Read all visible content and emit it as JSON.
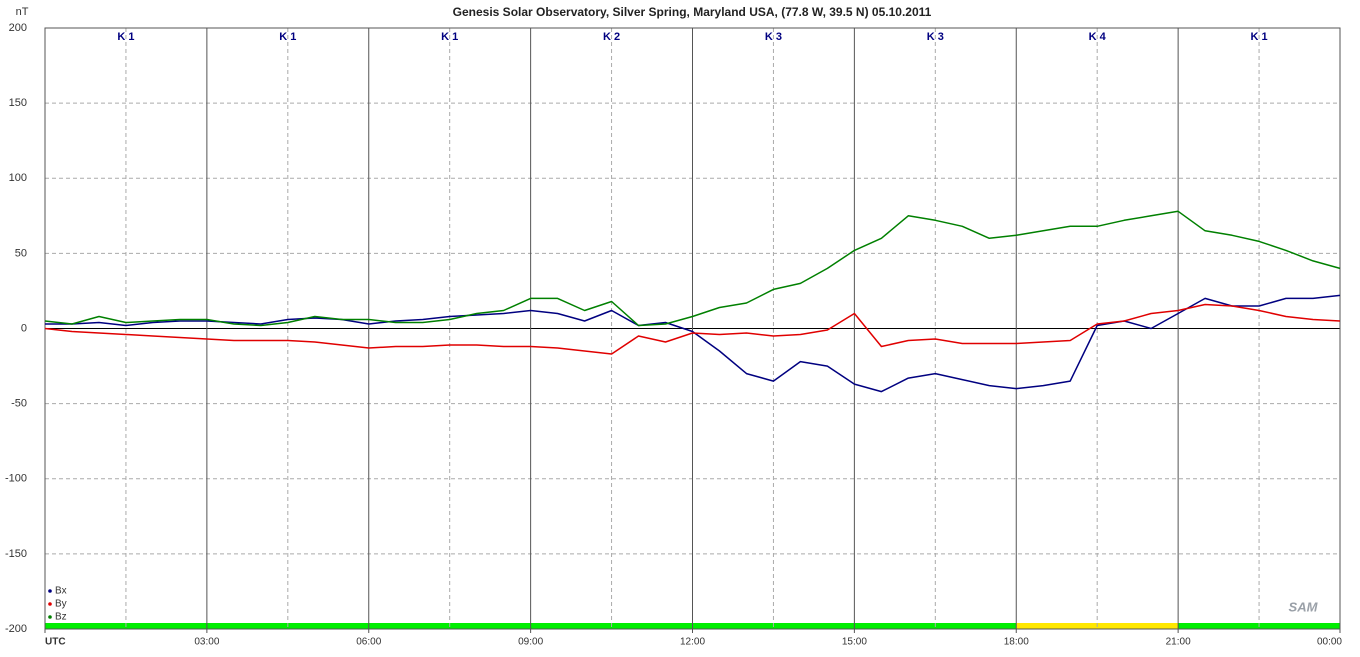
{
  "chart_data": {
    "type": "line",
    "title": "Genesis Solar Observatory, Silver Spring, Maryland USA, (77.8 W, 39.5 N)  05.10.2011",
    "y_label": "nT",
    "logo": "SAM",
    "x": [
      0,
      0.5,
      1,
      1.5,
      2,
      2.5,
      3,
      3.5,
      4,
      4.5,
      5,
      5.5,
      6,
      6.5,
      7,
      7.5,
      8,
      8.5,
      9,
      9.5,
      10,
      10.5,
      11,
      11.5,
      12,
      12.5,
      13,
      13.5,
      14,
      14.5,
      15,
      15.5,
      16,
      16.5,
      17,
      17.5,
      18,
      18.5,
      19,
      19.5,
      20,
      20.5,
      21,
      21.5,
      22,
      22.5,
      23,
      23.5,
      24
    ],
    "series": [
      {
        "name": "Bx",
        "color": "#000080",
        "values": [
          3,
          3,
          4,
          2,
          4,
          5,
          5,
          4,
          3,
          6,
          7,
          6,
          3,
          5,
          6,
          8,
          9,
          10,
          12,
          10,
          5,
          12,
          2,
          4,
          -2,
          -15,
          -30,
          -35,
          -22,
          -25,
          -37,
          -42,
          -33,
          -30,
          -34,
          -38,
          -40,
          -38,
          -35,
          2,
          5,
          0,
          10,
          20,
          15,
          15,
          20,
          20,
          22
        ]
      },
      {
        "name": "By",
        "color": "#e00000",
        "values": [
          0,
          -2,
          -3,
          -4,
          -5,
          -6,
          -7,
          -8,
          -8,
          -8,
          -9,
          -11,
          -13,
          -12,
          -12,
          -11,
          -11,
          -12,
          -12,
          -13,
          -15,
          -17,
          -5,
          -9,
          -3,
          -4,
          -3,
          -5,
          -4,
          -1,
          10,
          -12,
          -8,
          -7,
          -10,
          -10,
          -10,
          -9,
          -8,
          3,
          5,
          10,
          12,
          16,
          15,
          12,
          8,
          6,
          5
        ]
      },
      {
        "name": "Bz",
        "color": "#008000",
        "values": [
          5,
          3,
          8,
          4,
          5,
          6,
          6,
          3,
          2,
          4,
          8,
          6,
          6,
          4,
          4,
          6,
          10,
          12,
          20,
          20,
          12,
          18,
          2,
          3,
          8,
          14,
          17,
          26,
          30,
          40,
          52,
          60,
          75,
          72,
          68,
          60,
          62,
          65,
          68,
          68,
          72,
          75,
          78,
          65,
          62,
          58,
          52,
          45,
          40
        ]
      }
    ],
    "xlim": [
      0,
      24
    ],
    "xticks": [
      {
        "value": 0,
        "label": "UTC"
      },
      {
        "value": 3,
        "label": "03:00"
      },
      {
        "value": 6,
        "label": "06:00"
      },
      {
        "value": 9,
        "label": "09:00"
      },
      {
        "value": 12,
        "label": "12:00"
      },
      {
        "value": 15,
        "label": "15:00"
      },
      {
        "value": 18,
        "label": "18:00"
      },
      {
        "value": 21,
        "label": "21:00"
      },
      {
        "value": 24,
        "label": "00:00"
      }
    ],
    "x_minor_ticks": [
      1.5,
      4.5,
      7.5,
      10.5,
      13.5,
      16.5,
      19.5,
      22.5
    ],
    "ylim": [
      -200,
      200
    ],
    "yticks": [
      -200,
      -150,
      -100,
      -50,
      0,
      50,
      100,
      150,
      200
    ],
    "grid": true,
    "legend": "lower left",
    "k_labels": [
      "K 1",
      "K 1",
      "K 1",
      "K 2",
      "K 3",
      "K 3",
      "K 4",
      "K 1"
    ],
    "k_colors": [
      "#00ee00",
      "#00ee00",
      "#00ee00",
      "#00ee00",
      "#00ee00",
      "#00ee00",
      "#ffe800",
      "#00ee00"
    ]
  }
}
